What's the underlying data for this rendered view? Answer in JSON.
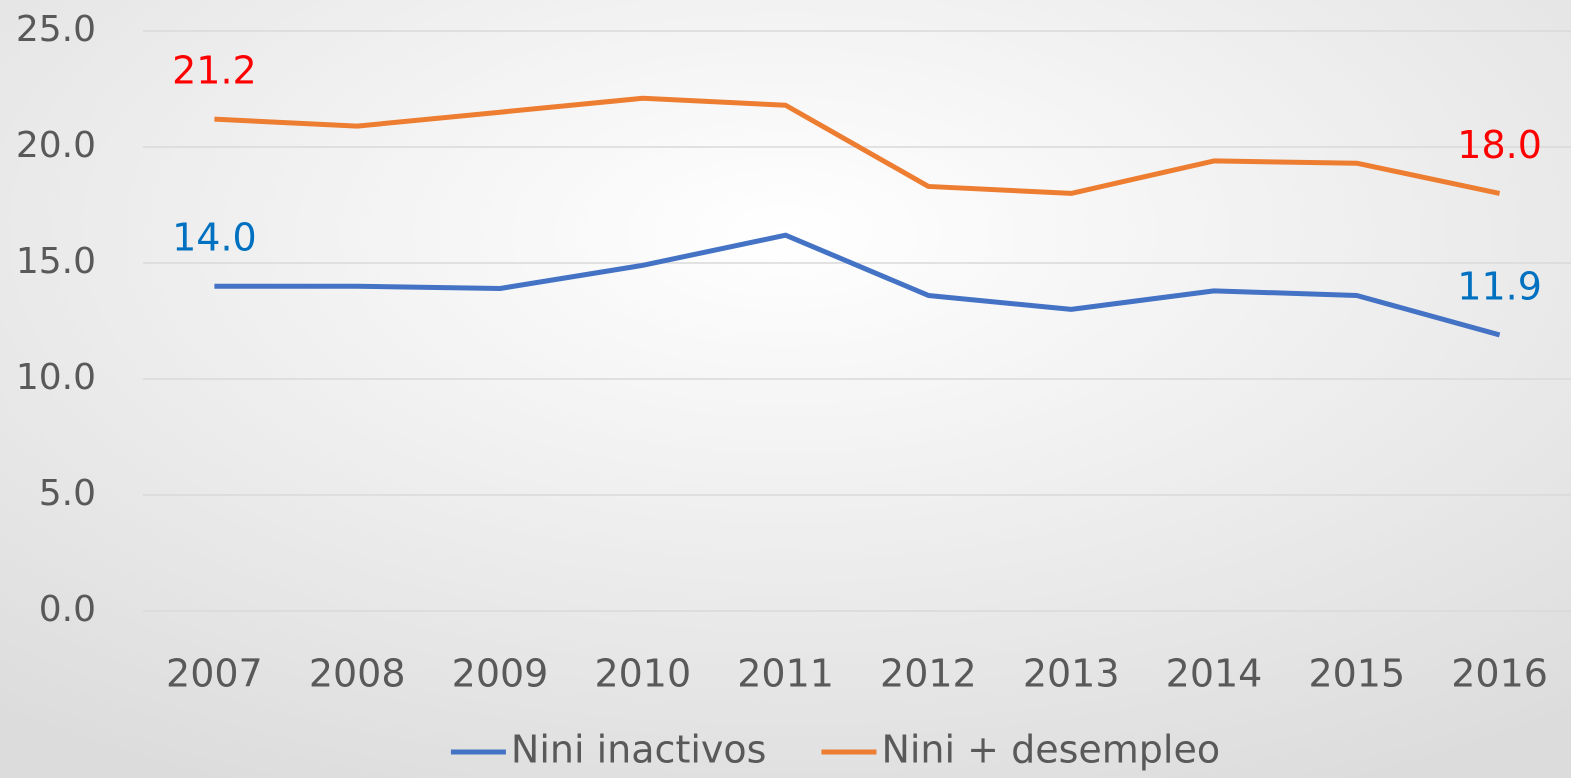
{
  "chart_data": {
    "type": "line",
    "categories": [
      "2007",
      "2008",
      "2009",
      "2010",
      "2011",
      "2012",
      "2013",
      "2014",
      "2015",
      "2016"
    ],
    "series": [
      {
        "name": "Nini inactivos",
        "color": "#4472c4",
        "label_color": "#0070c0",
        "values": [
          14.0,
          14.0,
          13.9,
          14.9,
          16.2,
          13.6,
          13.0,
          13.8,
          13.6,
          11.9
        ],
        "value_labels": [
          "14.0",
          null,
          null,
          null,
          null,
          null,
          null,
          null,
          null,
          "11.9"
        ]
      },
      {
        "name": "Nini + desempleo",
        "color": "#ed7d31",
        "label_color": "#ff0000",
        "values": [
          21.2,
          20.9,
          21.5,
          22.1,
          21.8,
          18.3,
          18.0,
          19.4,
          19.3,
          18.0
        ],
        "value_labels": [
          "21.2",
          null,
          null,
          null,
          null,
          null,
          null,
          null,
          null,
          "18.0"
        ]
      }
    ],
    "ylim": [
      0,
      25
    ],
    "yticks": [
      {
        "value": 0,
        "label": "0.0"
      },
      {
        "value": 5,
        "label": "5.0"
      },
      {
        "value": 10,
        "label": "10.0"
      },
      {
        "value": 15,
        "label": "15.0"
      },
      {
        "value": 20,
        "label": "20.0"
      },
      {
        "value": 25,
        "label": "25.0"
      }
    ],
    "grid": true,
    "legend": "bottom"
  }
}
